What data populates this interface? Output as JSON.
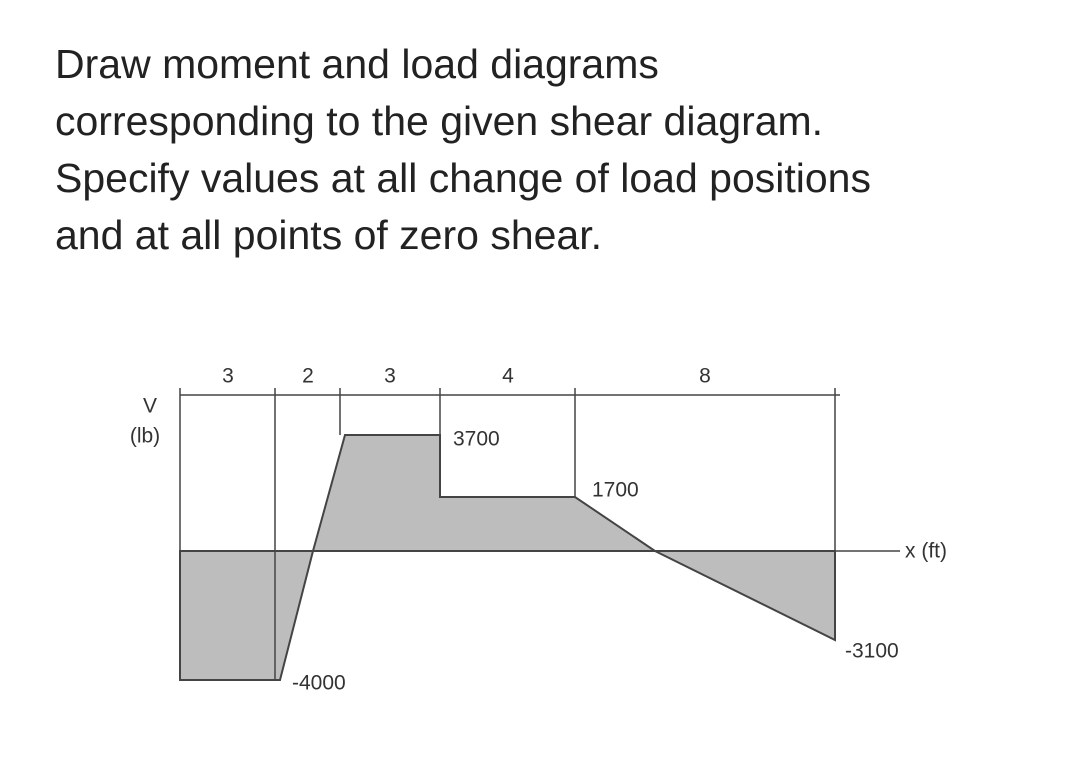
{
  "question": {
    "lines": [
      "Draw moment and load diagrams",
      "corresponding to the given shear diagram.",
      "Specify values at all change of load positions",
      "and at all points of zero shear."
    ]
  },
  "diagram": {
    "v_label": "V",
    "v_unit": "(lb)",
    "x_label": "x (ft)",
    "spans": [
      "3",
      "2",
      "3",
      "4",
      "8"
    ],
    "shear_labels": [
      "3700",
      "1700",
      "-3100",
      "-4000"
    ]
  }
}
